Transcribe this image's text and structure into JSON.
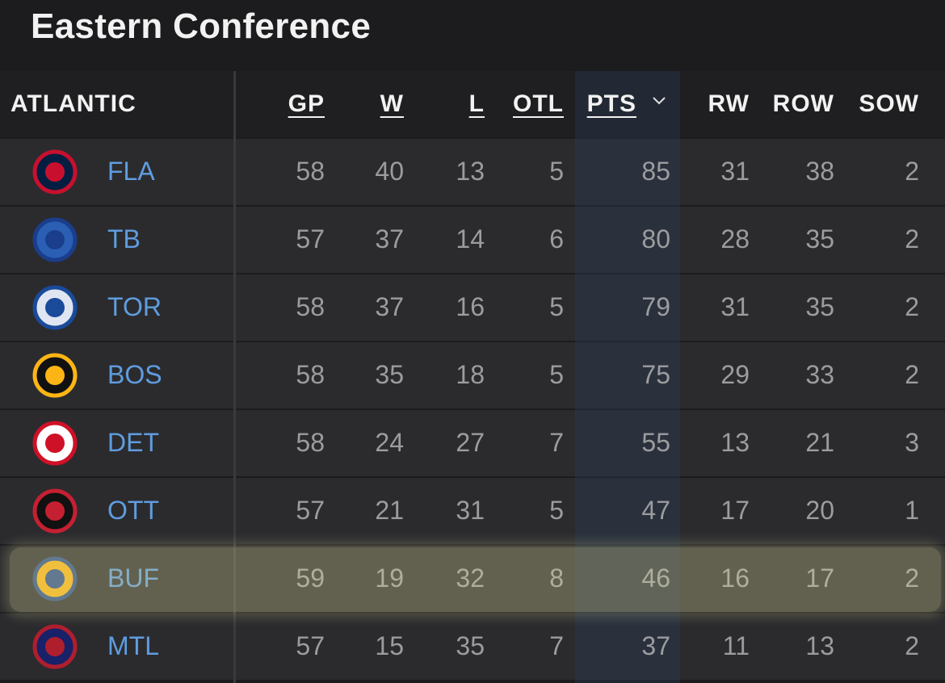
{
  "title": "Eastern Conference",
  "table": {
    "columns": [
      "ATLANTIC",
      "GP",
      "W",
      "L",
      "OTL",
      "PTS",
      "RW",
      "ROW",
      "SOW"
    ],
    "rows": [
      {
        "team": "FLA",
        "stats": [
          58,
          40,
          13,
          5,
          85,
          31,
          38,
          2
        ]
      },
      {
        "team": "TB",
        "stats": [
          57,
          37,
          14,
          6,
          80,
          28,
          35,
          2
        ]
      },
      {
        "team": "TOR",
        "stats": [
          58,
          37,
          16,
          5,
          79,
          31,
          35,
          2
        ]
      },
      {
        "team": "BOS",
        "stats": [
          58,
          35,
          18,
          5,
          75,
          29,
          33,
          2
        ]
      },
      {
        "team": "DET",
        "stats": [
          58,
          24,
          27,
          7,
          55,
          13,
          21,
          3
        ]
      },
      {
        "team": "OTT",
        "stats": [
          57,
          21,
          31,
          5,
          47,
          17,
          20,
          1
        ]
      },
      {
        "team": "BUF",
        "stats": [
          59,
          19,
          32,
          8,
          46,
          16,
          17,
          2
        ]
      },
      {
        "team": "MTL",
        "stats": [
          57,
          15,
          35,
          7,
          37,
          11,
          13,
          2
        ]
      }
    ]
  }
}
